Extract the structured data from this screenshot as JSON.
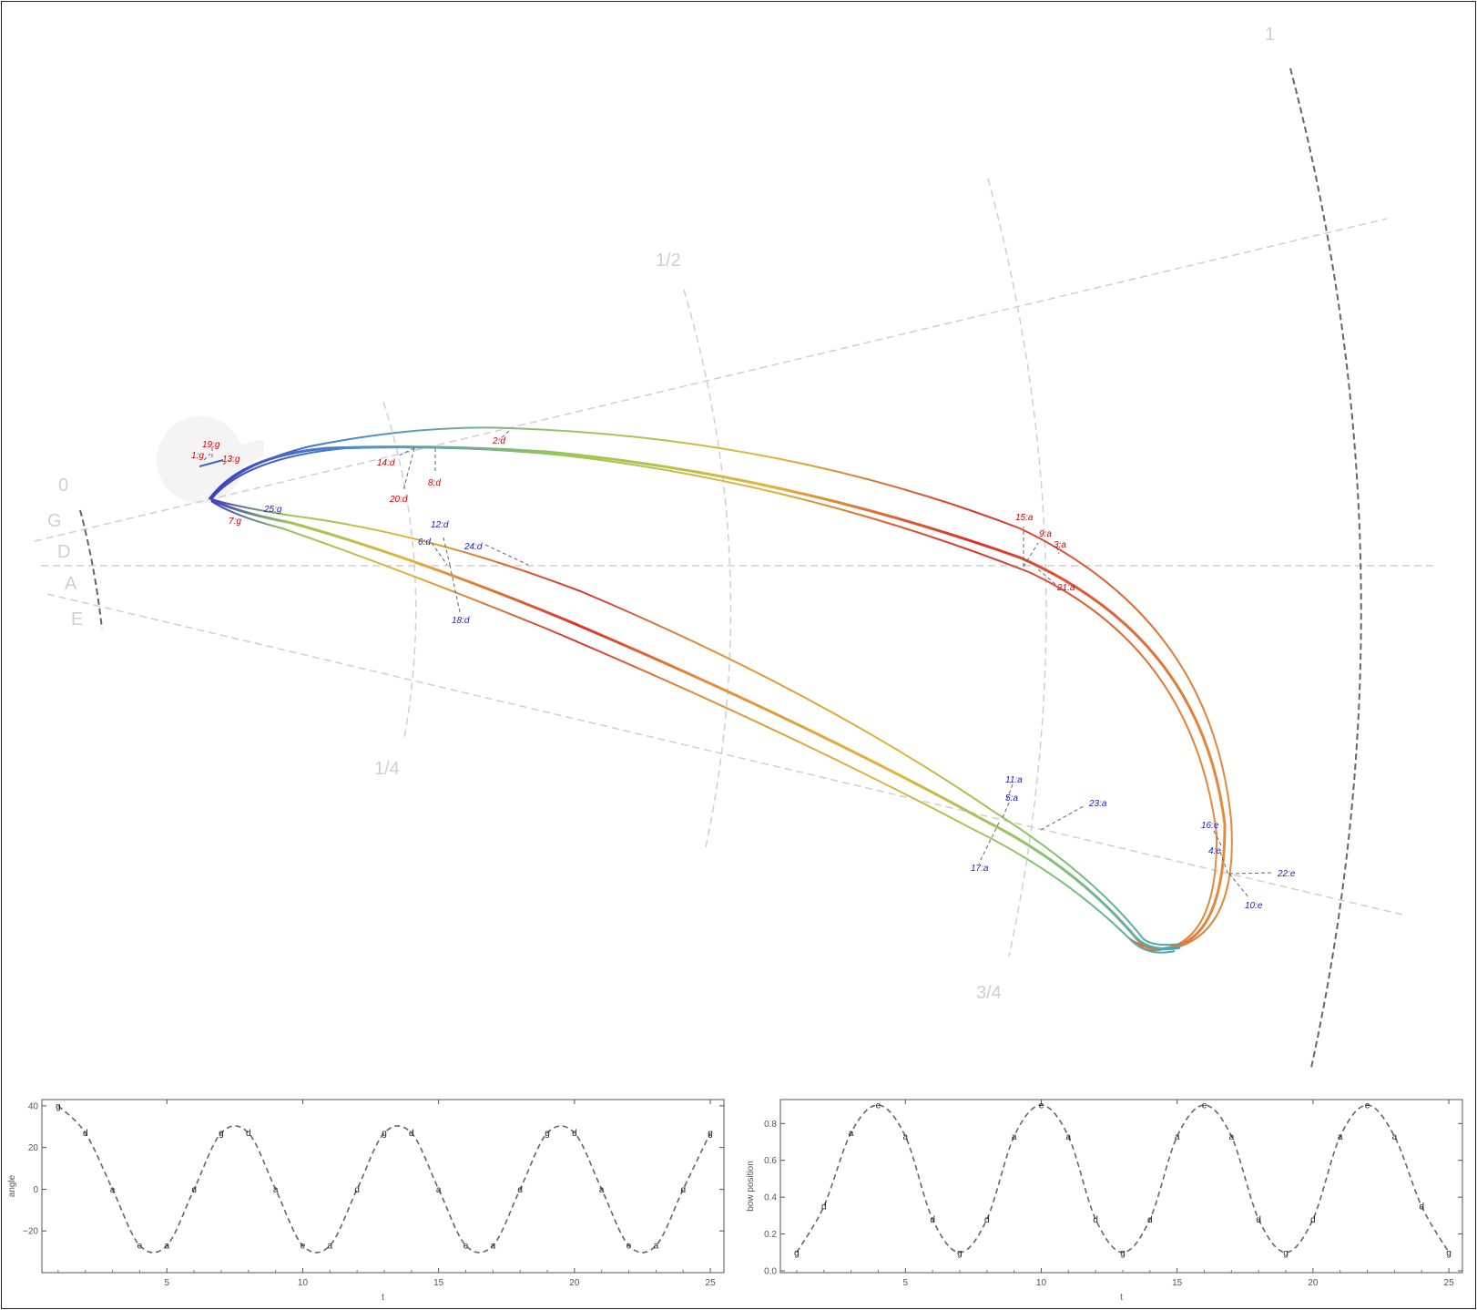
{
  "main_diagram": {
    "fraction_labels": [
      "0",
      "1/4",
      "1/2",
      "3/4",
      "1"
    ],
    "string_labels": [
      "G",
      "D",
      "A",
      "E"
    ],
    "segment_labels": [
      {
        "text": "1:g",
        "color": "#dd0000"
      },
      {
        "text": "2:d",
        "color": "#dd0000"
      },
      {
        "text": "3:a",
        "color": "#dd0000"
      },
      {
        "text": "4:e",
        "color": "#1a1adf"
      },
      {
        "text": "5:a",
        "color": "#1a1adf"
      },
      {
        "text": "6:d",
        "color": "#1a1adf"
      },
      {
        "text": "7:g",
        "color": "#dd0000"
      },
      {
        "text": "8:d",
        "color": "#dd0000"
      },
      {
        "text": "9:a",
        "color": "#dd0000"
      },
      {
        "text": "10:e",
        "color": "#1a1adf"
      },
      {
        "text": "11:a",
        "color": "#1a1adf"
      },
      {
        "text": "12:d",
        "color": "#1a1adf"
      },
      {
        "text": "13:g",
        "color": "#dd0000"
      },
      {
        "text": "14:d",
        "color": "#dd0000"
      },
      {
        "text": "15:a",
        "color": "#dd0000"
      },
      {
        "text": "16:e",
        "color": "#1a1adf"
      },
      {
        "text": "17:a",
        "color": "#1a1adf"
      },
      {
        "text": "18:d",
        "color": "#1a1adf"
      },
      {
        "text": "19:g",
        "color": "#dd0000"
      },
      {
        "text": "20:d",
        "color": "#dd0000"
      },
      {
        "text": "21:a",
        "color": "#dd0000"
      },
      {
        "text": "22:e",
        "color": "#1a1adf"
      },
      {
        "text": "23:a",
        "color": "#1a1adf"
      },
      {
        "text": "24:d",
        "color": "#1a1adf"
      },
      {
        "text": "25:g",
        "color": "#1a1adf"
      }
    ]
  },
  "chart_data": [
    {
      "type": "line",
      "xlabel": "t",
      "ylabel": "angle",
      "xlim": [
        0.4,
        25.5
      ],
      "ylim": [
        -40,
        43
      ],
      "xticks": [
        "5",
        "10",
        "15",
        "20",
        "25"
      ],
      "yticks": [
        "40",
        "20",
        "0",
        "−20"
      ],
      "points": [
        {
          "x": 1,
          "y": 40,
          "label": "g"
        },
        {
          "x": 2,
          "y": 27,
          "label": "d"
        },
        {
          "x": 3,
          "y": 0,
          "label": "a"
        },
        {
          "x": 4,
          "y": -27,
          "label": "e"
        },
        {
          "x": 5,
          "y": -27,
          "label": "a"
        },
        {
          "x": 6,
          "y": 0,
          "label": "d"
        },
        {
          "x": 7,
          "y": 27,
          "label": "g"
        },
        {
          "x": 8,
          "y": 27,
          "label": "d"
        },
        {
          "x": 9,
          "y": 0,
          "label": "a"
        },
        {
          "x": 10,
          "y": -27,
          "label": "e"
        },
        {
          "x": 11,
          "y": -27,
          "label": "a"
        },
        {
          "x": 12,
          "y": 0,
          "label": "d"
        },
        {
          "x": 13,
          "y": 27,
          "label": "g"
        },
        {
          "x": 14,
          "y": 27,
          "label": "d"
        },
        {
          "x": 15,
          "y": 0,
          "label": "a"
        },
        {
          "x": 16,
          "y": -27,
          "label": "e"
        },
        {
          "x": 17,
          "y": -27,
          "label": "a"
        },
        {
          "x": 18,
          "y": 0,
          "label": "d"
        },
        {
          "x": 19,
          "y": 27,
          "label": "g"
        },
        {
          "x": 20,
          "y": 27,
          "label": "d"
        },
        {
          "x": 21,
          "y": 0,
          "label": "a"
        },
        {
          "x": 22,
          "y": -27,
          "label": "e"
        },
        {
          "x": 23,
          "y": -27,
          "label": "a"
        },
        {
          "x": 24,
          "y": 0,
          "label": "d"
        },
        {
          "x": 25,
          "y": 27,
          "label": "g"
        }
      ]
    },
    {
      "type": "line",
      "xlabel": "t",
      "ylabel": "bow position",
      "xlim": [
        0.4,
        25.5
      ],
      "ylim": [
        -0.01,
        0.93
      ],
      "xticks": [
        "5",
        "10",
        "15",
        "20",
        "25"
      ],
      "yticks": [
        "0.8",
        "0.6",
        "0.4",
        "0.2",
        "0.0"
      ],
      "points": [
        {
          "x": 1,
          "y": 0.1,
          "label": "g"
        },
        {
          "x": 2,
          "y": 0.35,
          "label": "d"
        },
        {
          "x": 3,
          "y": 0.75,
          "label": "a"
        },
        {
          "x": 4,
          "y": 0.9,
          "label": "e"
        },
        {
          "x": 5,
          "y": 0.73,
          "label": "a"
        },
        {
          "x": 6,
          "y": 0.28,
          "label": "d"
        },
        {
          "x": 7,
          "y": 0.1,
          "label": "g"
        },
        {
          "x": 8,
          "y": 0.28,
          "label": "d"
        },
        {
          "x": 9,
          "y": 0.73,
          "label": "a"
        },
        {
          "x": 10,
          "y": 0.9,
          "label": "e"
        },
        {
          "x": 11,
          "y": 0.73,
          "label": "a"
        },
        {
          "x": 12,
          "y": 0.28,
          "label": "d"
        },
        {
          "x": 13,
          "y": 0.1,
          "label": "g"
        },
        {
          "x": 14,
          "y": 0.28,
          "label": "d"
        },
        {
          "x": 15,
          "y": 0.73,
          "label": "a"
        },
        {
          "x": 16,
          "y": 0.9,
          "label": "e"
        },
        {
          "x": 17,
          "y": 0.73,
          "label": "a"
        },
        {
          "x": 18,
          "y": 0.28,
          "label": "d"
        },
        {
          "x": 19,
          "y": 0.1,
          "label": "g"
        },
        {
          "x": 20,
          "y": 0.28,
          "label": "d"
        },
        {
          "x": 21,
          "y": 0.73,
          "label": "a"
        },
        {
          "x": 22,
          "y": 0.9,
          "label": "e"
        },
        {
          "x": 23,
          "y": 0.73,
          "label": "a"
        },
        {
          "x": 24,
          "y": 0.35,
          "label": "d"
        },
        {
          "x": 25,
          "y": 0.1,
          "label": "g"
        }
      ]
    }
  ]
}
